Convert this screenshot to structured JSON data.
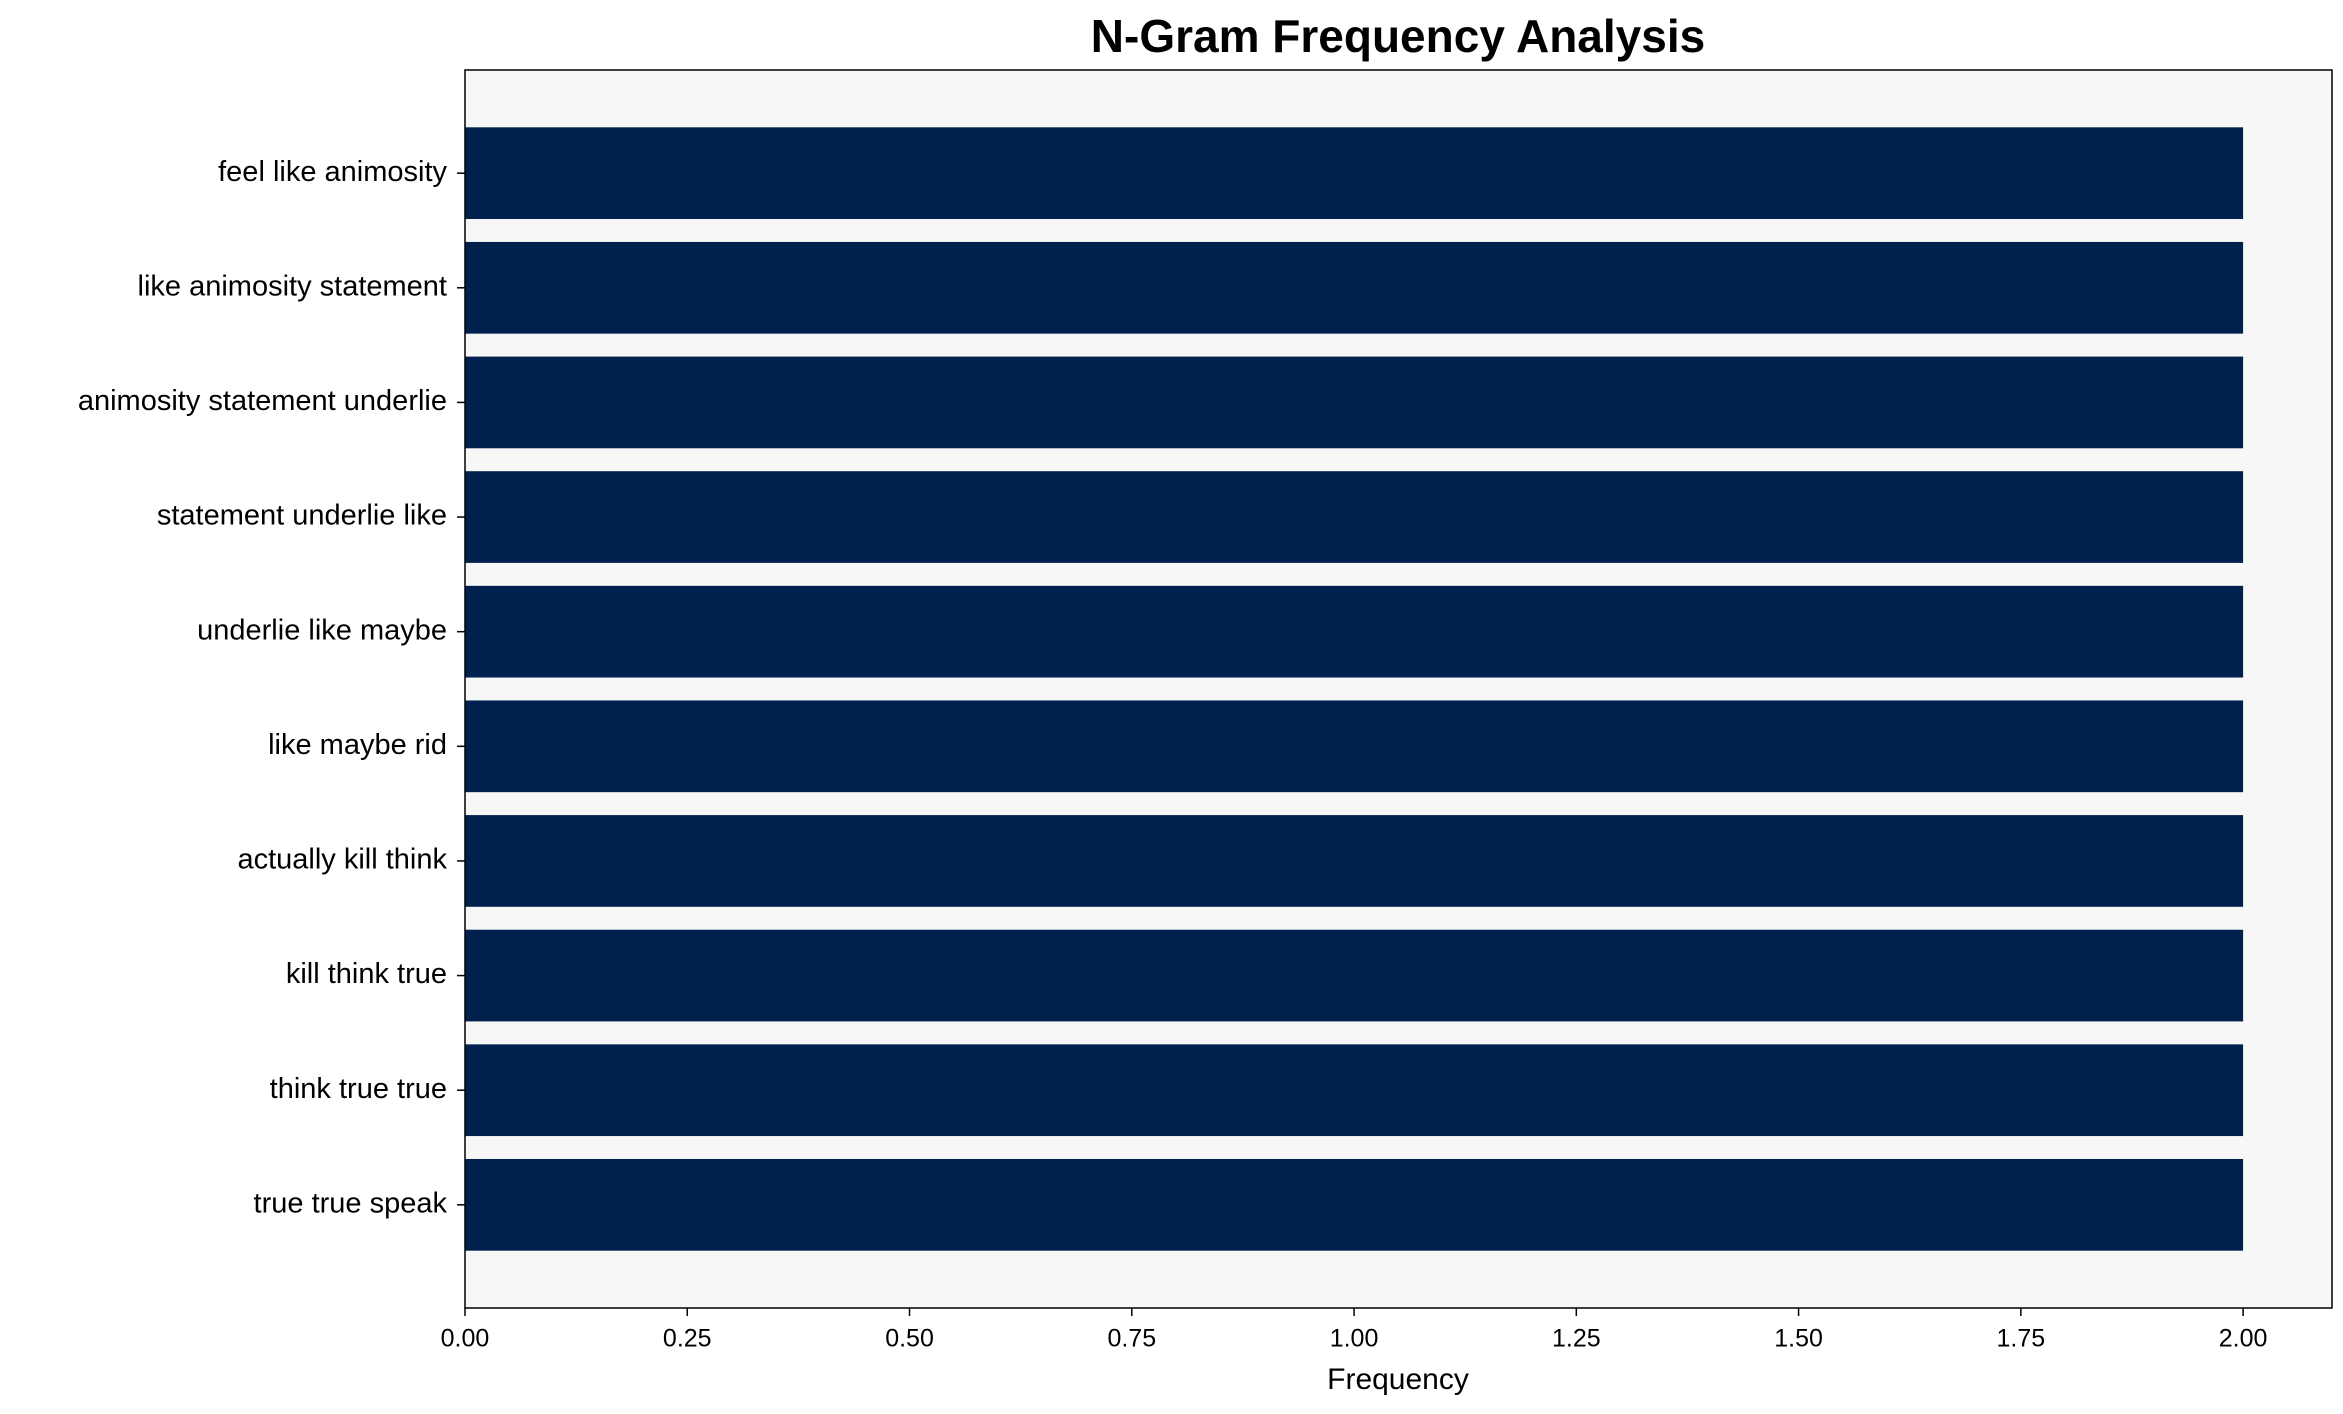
{
  "chart_data": {
    "type": "barh",
    "title": "N-Gram Frequency Analysis",
    "x_label": "Frequency",
    "categories": [
      "feel like animosity",
      "like animosity statement",
      "animosity statement underlie",
      "statement underlie like",
      "underlie like maybe",
      "like maybe rid",
      "actually kill think",
      "kill think true",
      "think true true",
      "true true speak"
    ],
    "values": [
      2,
      2,
      2,
      2,
      2,
      2,
      2,
      2,
      2,
      2
    ],
    "color": "#00214d",
    "xlim": [
      0,
      2.1
    ],
    "xticks": [
      {
        "value": 0,
        "label": "0.00"
      },
      {
        "value": 0.25,
        "label": "0.25"
      },
      {
        "value": 0.5,
        "label": "0.50"
      },
      {
        "value": 0.75,
        "label": "0.75"
      },
      {
        "value": 1,
        "label": "1.00"
      },
      {
        "value": 1.25,
        "label": "1.25"
      },
      {
        "value": 1.5,
        "label": "1.50"
      },
      {
        "value": 1.75,
        "label": "1.75"
      },
      {
        "value": 2,
        "label": "2.00"
      }
    ],
    "grid": false
  }
}
